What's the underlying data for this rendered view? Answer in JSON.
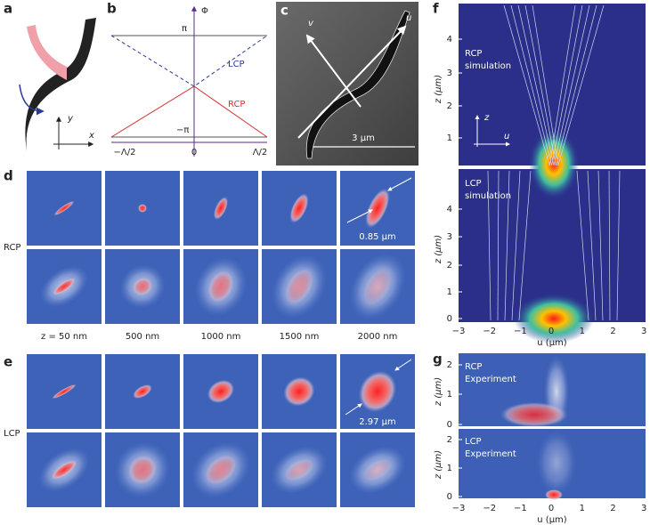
{
  "panels": {
    "a": {
      "label": "a",
      "axis_x": "x",
      "axis_y": "y"
    },
    "b": {
      "label": "b",
      "axis_y": "Φ",
      "top": "π",
      "bottom": "−π",
      "x_ticks": [
        "−Λ/2",
        "0",
        "Λ/2"
      ],
      "lcp": "LCP",
      "rcp": "RCP"
    },
    "c": {
      "label": "c",
      "axis_v": "v",
      "axis_u": "u",
      "scale": "3 μm"
    },
    "d": {
      "label": "d",
      "row_label": "RCP",
      "width": "0.85 μm",
      "columns": [
        "z = 50 nm",
        "500 nm",
        "1000 nm",
        "1500 nm",
        "2000 nm"
      ]
    },
    "e": {
      "label": "e",
      "row_label": "LCP",
      "width": "2.97 μm"
    },
    "f": {
      "label": "f",
      "top_title": [
        "RCP",
        "simulation"
      ],
      "bottom_title": [
        "LCP",
        "simulation"
      ],
      "y_label": "z (μm)",
      "x_label": "u (μm)",
      "top_yticks": [
        "1",
        "2",
        "3",
        "4"
      ],
      "bottom_yticks": [
        "0",
        "1",
        "2",
        "3",
        "4"
      ],
      "xticks": [
        "−3",
        "−2",
        "−1",
        "0",
        "1",
        "2",
        "3"
      ],
      "inset_z": "z",
      "inset_u": "u"
    },
    "g": {
      "label": "g",
      "top_title": [
        "RCP",
        "Experiment"
      ],
      "bottom_title": [
        "LCP",
        "Experiment"
      ],
      "y_label": "z (μm)",
      "x_label": "u (μm)",
      "top_yticks": [
        "0",
        "1",
        "2"
      ],
      "bottom_yticks": [
        "0",
        "1",
        "2"
      ],
      "xticks": [
        "−3",
        "−2",
        "−1",
        "0",
        "1",
        "2",
        "3"
      ]
    }
  }
}
